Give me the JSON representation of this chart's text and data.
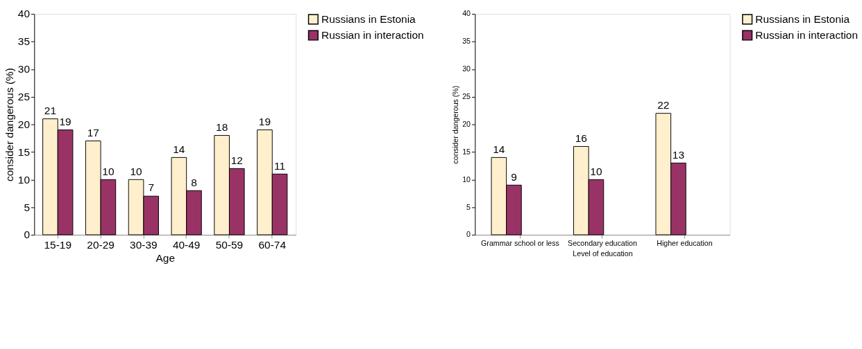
{
  "chart_data": [
    {
      "type": "bar",
      "categories": [
        "15-19",
        "20-29",
        "30-39",
        "40-49",
        "50-59",
        "60-74"
      ],
      "xlabel": "Age",
      "ylabel": "consider dangerous (%)",
      "ylim": [
        0,
        40
      ],
      "yticks": [
        0,
        5,
        10,
        15,
        20,
        25,
        30,
        35,
        40
      ],
      "data_labels": true,
      "legend": "right",
      "grid": false,
      "series": [
        {
          "name": "Russians in Estonia",
          "color": "#ffefcc",
          "values": [
            21,
            17,
            10,
            14,
            18,
            19
          ]
        },
        {
          "name": "Russian in interaction",
          "color": "#993366",
          "values": [
            19,
            10,
            7,
            8,
            12,
            11
          ]
        }
      ]
    },
    {
      "type": "bar",
      "categories": [
        "Grammar school or less",
        "Secondary education",
        "Higher education"
      ],
      "xlabel": "Level of education",
      "ylabel": "consider dangerous (%)",
      "ylim": [
        0,
        40
      ],
      "yticks": [
        0,
        5,
        10,
        15,
        20,
        25,
        30,
        35,
        40
      ],
      "data_labels": true,
      "legend": "right",
      "grid": false,
      "series": [
        {
          "name": "Russians in Estonia",
          "color": "#ffefcc",
          "values": [
            14,
            16,
            22
          ]
        },
        {
          "name": "Russian in interaction",
          "color": "#993366",
          "values": [
            9,
            10,
            13
          ]
        }
      ]
    }
  ]
}
